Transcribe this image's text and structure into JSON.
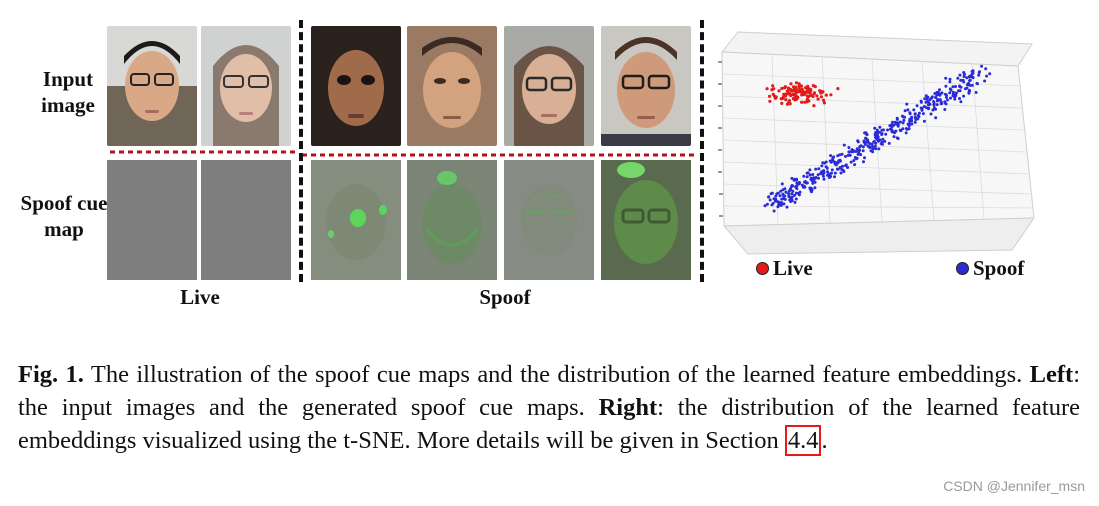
{
  "labels": {
    "input_image": "Input image",
    "spoof_cue_map": "Spoof cue map",
    "live_group": "Live",
    "spoof_group": "Spoof"
  },
  "legend": {
    "live": "Live",
    "spoof": "Spoof",
    "live_color": "#e31b1b",
    "spoof_color": "#2b2bd6"
  },
  "caption": {
    "fig_label": "Fig. 1.",
    "text_1": " The illustration of the spoof cue maps and the distribution of the learned feature embeddings. ",
    "left_label": "Left",
    "text_2": ": the input images and the generated spoof cue maps. ",
    "right_label": "Right",
    "text_3": ": the distribution of the learned feature embeddings visualized using the t-SNE. More details will be given in Section ",
    "ref": "4.4",
    "text_4": "."
  },
  "watermark": "CSDN @Jennifer_msn"
}
